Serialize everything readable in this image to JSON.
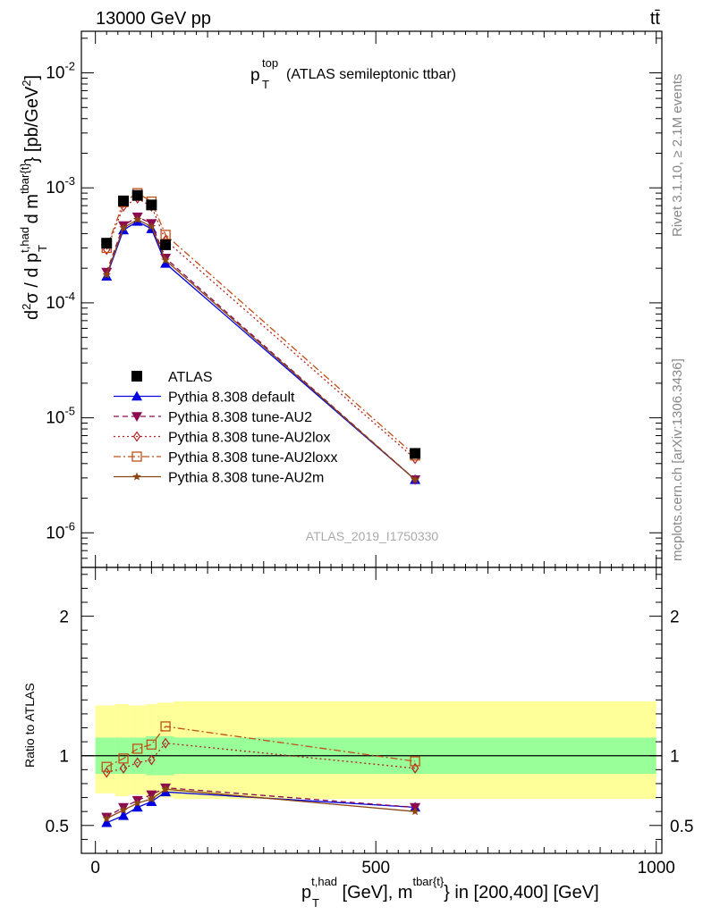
{
  "header": {
    "left": "13000 GeV pp",
    "right": "tt̄"
  },
  "side_labels": {
    "rivet": "Rivet 3.1.10, ≥ 2.1M events",
    "mcplots": "mcplots.cern.ch [arXiv:1306.3436]"
  },
  "watermark": "ATLAS_2019_I1750330",
  "chart_data": [
    {
      "type": "scatter",
      "title": "p_T^top (ATLAS semileptonic ttbar)",
      "ylabel": "d²σ / d p_T^{t,had} d m^{tbar{t}} [pb/GeV²]",
      "yscale": "log",
      "xlim": [
        -25,
        1010
      ],
      "ylim": [
        5e-07,
        0.023
      ],
      "y_tick_labels": [
        "10^-6",
        "10^-5",
        "10^-4",
        "10^-3",
        "10^-2"
      ],
      "legend_placement": "lower-left",
      "x": [
        20,
        50,
        75,
        100,
        125,
        570
      ],
      "series": [
        {
          "name": "ATLAS",
          "color": "#000000",
          "marker": "square-filled",
          "line": "none",
          "values": [
            0.00033,
            0.00077,
            0.00086,
            0.00071,
            0.00032,
            4.9e-06
          ]
        },
        {
          "name": "Pythia 8.308 default",
          "color": "#0000e0",
          "marker": "triangle-up-filled",
          "line": "solid",
          "values": [
            0.00017,
            0.00043,
            0.00051,
            0.00044,
            0.00022,
            2.9e-06
          ]
        },
        {
          "name": "Pythia 8.308 tune-AU2",
          "color": "#8b0a50",
          "marker": "triangle-down-filled",
          "line": "dashed",
          "values": [
            0.000185,
            0.00047,
            0.00056,
            0.00049,
            0.000245,
            2.9e-06
          ]
        },
        {
          "name": "Pythia 8.308 tune-AU2lox",
          "color": "#b22222",
          "marker": "diamond-open",
          "line": "dotted",
          "values": [
            0.00029,
            0.00069,
            0.00081,
            0.00069,
            0.00035,
            4.4e-06
          ]
        },
        {
          "name": "Pythia 8.308 tune-AU2loxx",
          "color": "#c05018",
          "marker": "square-open",
          "line": "dashdot",
          "values": [
            0.0003,
            0.00075,
            0.0009,
            0.00076,
            0.00039,
            4.7e-06
          ]
        },
        {
          "name": "Pythia 8.308 tune-AU2m",
          "color": "#8b4513",
          "marker": "star-filled",
          "line": "solid",
          "values": [
            0.000175,
            0.00045,
            0.00053,
            0.00046,
            0.000235,
            2.9e-06
          ]
        }
      ]
    },
    {
      "type": "line",
      "ylabel": "Ratio to ATLAS",
      "xlabel": "p_T^{t,had} [GeV], m^{tbar{t}} in [200,400] [GeV]",
      "xlim": [
        -25,
        1010
      ],
      "ylim": [
        0.3,
        2.35
      ],
      "x_tick_labels": [
        "0",
        "500",
        "1000"
      ],
      "y_tick_labels": [
        "0.5",
        "1",
        "2"
      ],
      "bands": {
        "x_edges": [
          0,
          35,
          60,
          90,
          110,
          140,
          1000
        ],
        "stat": {
          "color": "#99ff99",
          "lo": [
            0.87,
            0.87,
            0.87,
            0.86,
            0.86,
            0.87
          ],
          "hi": [
            1.13,
            1.13,
            1.13,
            1.14,
            1.14,
            1.13
          ]
        },
        "total": {
          "color": "#ffff99",
          "lo": [
            0.73,
            0.71,
            0.72,
            0.7,
            0.7,
            0.69
          ],
          "hi": [
            1.36,
            1.37,
            1.36,
            1.37,
            1.38,
            1.39
          ]
        }
      },
      "x": [
        20,
        50,
        75,
        100,
        125,
        570
      ],
      "series": [
        {
          "name": "Pythia 8.308 default",
          "color": "#0000e0",
          "marker": "triangle-up-filled",
          "line": "solid",
          "values": [
            0.52,
            0.57,
            0.63,
            0.67,
            0.74,
            0.63
          ]
        },
        {
          "name": "Pythia 8.308 tune-AU2",
          "color": "#8b0a50",
          "marker": "triangle-down-filled",
          "line": "dashed",
          "values": [
            0.56,
            0.63,
            0.68,
            0.72,
            0.77,
            0.63
          ]
        },
        {
          "name": "Pythia 8.308 tune-AU2lox",
          "color": "#b22222",
          "marker": "diamond-open",
          "line": "dotted",
          "values": [
            0.88,
            0.91,
            0.95,
            0.97,
            1.09,
            0.91
          ]
        },
        {
          "name": "Pythia 8.308 tune-AU2loxx",
          "color": "#c05018",
          "marker": "square-open",
          "line": "dashdot",
          "values": [
            0.92,
            0.98,
            1.05,
            1.08,
            1.21,
            0.96
          ]
        },
        {
          "name": "Pythia 8.308 tune-AU2m",
          "color": "#8b4513",
          "marker": "star-filled",
          "line": "solid",
          "values": [
            0.55,
            0.61,
            0.66,
            0.69,
            0.76,
            0.6
          ]
        }
      ]
    }
  ]
}
